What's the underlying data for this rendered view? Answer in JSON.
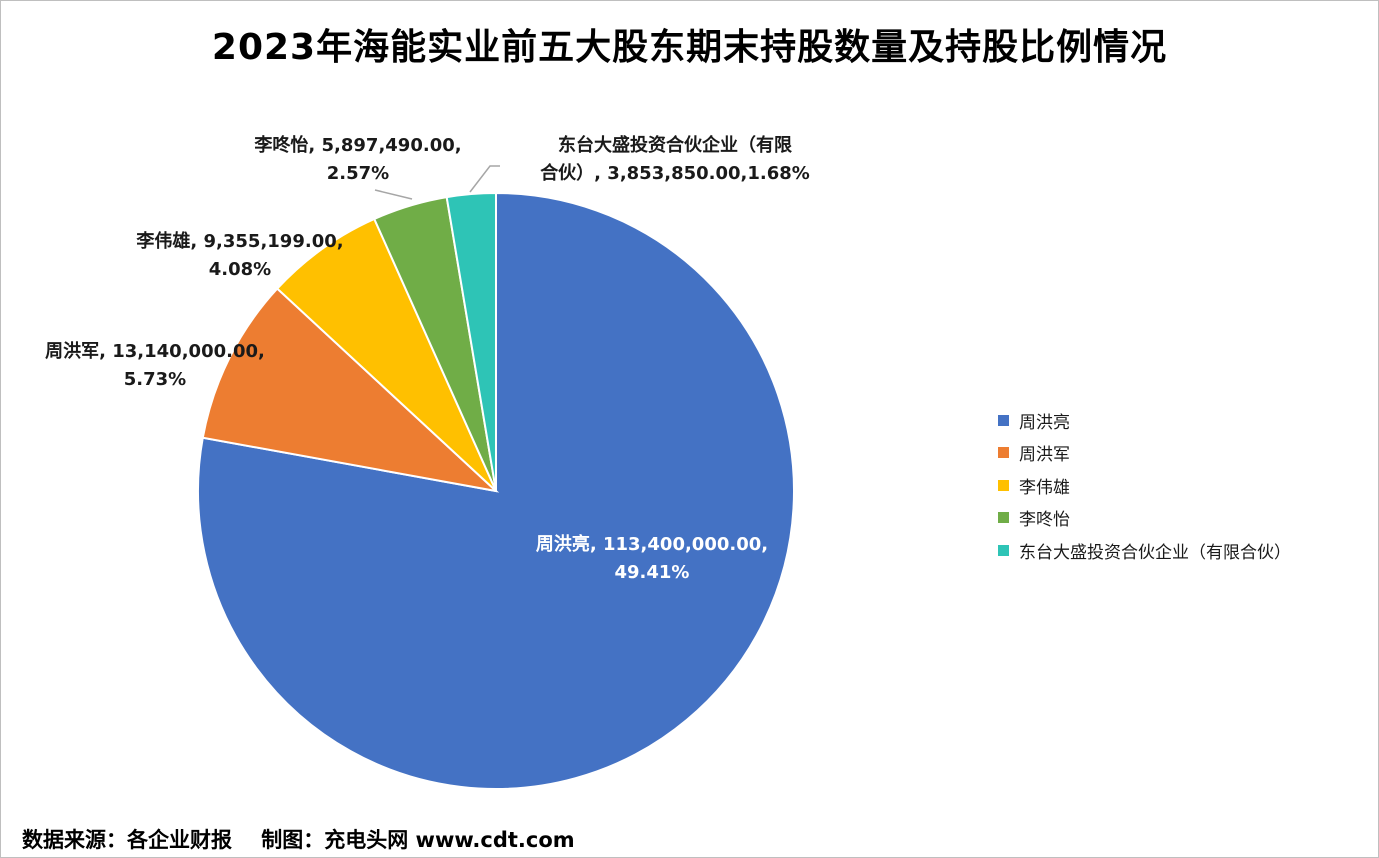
{
  "chart_data": {
    "type": "pie",
    "title": "2023年海能实业前五大股东期末持股数量及持股比例情况",
    "slices": [
      {
        "name": "周洪亮",
        "value": 113400000,
        "value_text": "113,400,000.00",
        "percent": 49.41,
        "percent_text": "49.41%",
        "color": "#4472C4"
      },
      {
        "name": "周洪军",
        "value": 13140000,
        "value_text": "13,140,000.00",
        "percent": 5.73,
        "percent_text": "5.73%",
        "color": "#ED7D31"
      },
      {
        "name": "李伟雄",
        "value": 9355199,
        "value_text": "9,355,199.00",
        "percent": 4.08,
        "percent_text": "4.08%",
        "color": "#FFC000"
      },
      {
        "name": "李咚怡",
        "value": 5897490,
        "value_text": "5,897,490.00",
        "percent": 2.57,
        "percent_text": "2.57%",
        "color": "#70AD47"
      },
      {
        "name": "东台大盛投资合伙企业（有限合伙）",
        "value": 3853850,
        "value_text": "3,853,850.00",
        "percent": 1.68,
        "percent_text": "1.68%",
        "color": "#2EC4B6"
      }
    ],
    "data_labels": [
      {
        "lines": [
          "周洪亮, 113,400,000.00,",
          "49.41%"
        ],
        "color": "#ffffff"
      },
      {
        "lines": [
          "周洪军, 13,140,000.00,",
          "5.73%"
        ],
        "color": "#1a1a1a"
      },
      {
        "lines": [
          "李伟雄, 9,355,199.00,",
          "4.08%"
        ],
        "color": "#1a1a1a"
      },
      {
        "lines": [
          "李咚怡, 5,897,490.00,",
          "2.57%"
        ],
        "color": "#1a1a1a"
      },
      {
        "lines": [
          "东台大盛投资合伙企业（有限",
          "合伙）, 3,853,850.00,1.68%"
        ],
        "color": "#1a1a1a"
      }
    ],
    "legend_position": "right"
  },
  "footer": "数据来源：各企业财报    制图：充电头网 www.cdt.com"
}
